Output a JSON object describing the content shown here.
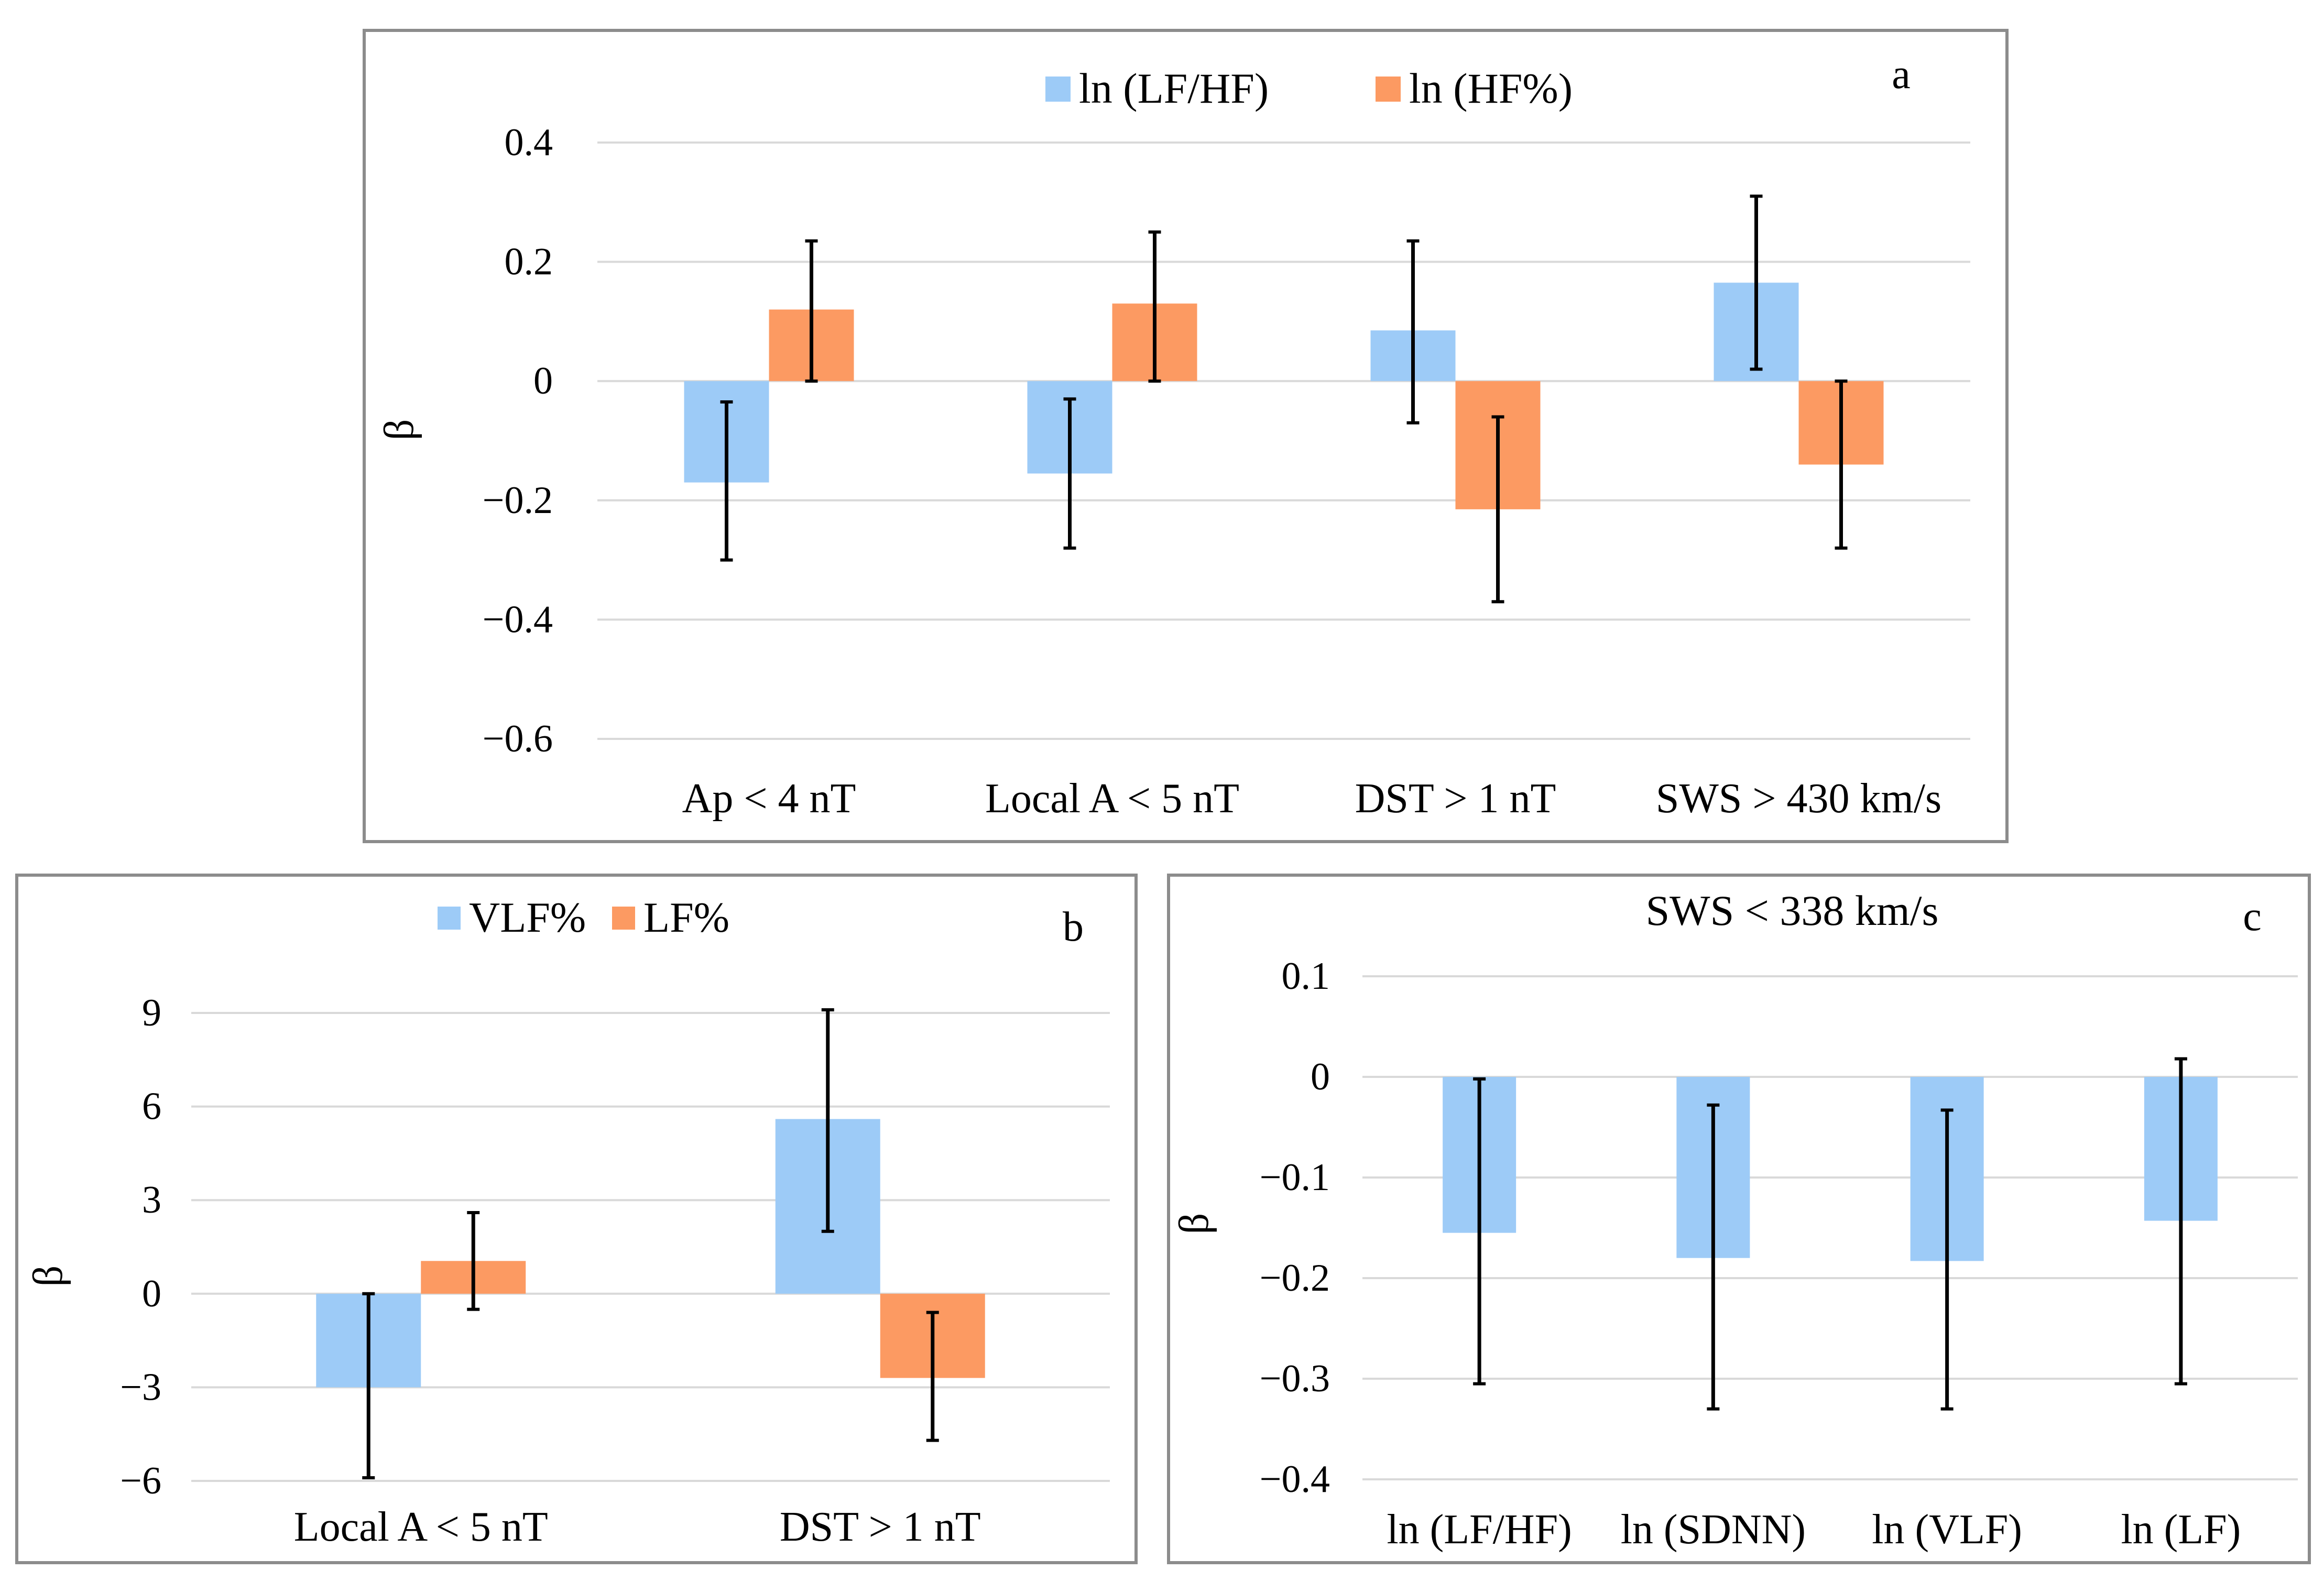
{
  "chart_data": [
    {
      "id": "a",
      "type": "bar",
      "panel_label": "a",
      "title": "",
      "xlabel": "",
      "ylabel": "β",
      "ylim": [
        -0.6,
        0.4
      ],
      "yticks": [
        0.4,
        0.2,
        0,
        -0.2,
        -0.4,
        -0.6
      ],
      "ytick_labels": [
        "0.4",
        "0.2",
        "0",
        "−0.2",
        "−0.4",
        "−0.6"
      ],
      "categories": [
        "Ap < 4 nT",
        "Local A < 5 nT",
        "DST > 1 nT",
        "SWS > 430 km/s"
      ],
      "legend_position": "top-center",
      "grid": true,
      "series": [
        {
          "name": "ln (LF/HF)",
          "color": "#9dcbf7",
          "values": [
            -0.17,
            -0.155,
            0.085,
            0.165
          ],
          "err_low": [
            -0.3,
            -0.28,
            -0.07,
            0.02
          ],
          "err_high": [
            -0.035,
            -0.03,
            0.235,
            0.31
          ]
        },
        {
          "name": "ln (HF%)",
          "color": "#fc9a62",
          "values": [
            0.12,
            0.13,
            -0.215,
            -0.14
          ],
          "err_low": [
            0.0,
            0.0,
            -0.37,
            -0.28
          ],
          "err_high": [
            0.235,
            0.25,
            -0.06,
            0.0
          ]
        }
      ]
    },
    {
      "id": "b",
      "type": "bar",
      "panel_label": "b",
      "title": "",
      "xlabel": "",
      "ylabel": "β",
      "ylim": [
        -6,
        9
      ],
      "yticks": [
        9,
        6,
        3,
        0,
        -3,
        -6
      ],
      "ytick_labels": [
        "9",
        "6",
        "3",
        "0",
        "−3",
        "−6"
      ],
      "categories": [
        "Local A < 5 nT",
        "DST > 1 nT"
      ],
      "legend_position": "top-center",
      "grid": true,
      "series": [
        {
          "name": "VLF%",
          "color": "#9dcbf7",
          "values": [
            -3.0,
            5.6
          ],
          "err_low": [
            -5.9,
            2.0
          ],
          "err_high": [
            0.0,
            9.1
          ]
        },
        {
          "name": "LF%",
          "color": "#fc9a62",
          "values": [
            1.05,
            -2.7
          ],
          "err_low": [
            -0.5,
            -4.7
          ],
          "err_high": [
            2.6,
            -0.6
          ]
        }
      ]
    },
    {
      "id": "c",
      "type": "bar",
      "panel_label": "c",
      "title": "SWS < 338 km/s",
      "xlabel": "",
      "ylabel": "β",
      "ylim": [
        -0.4,
        0.1
      ],
      "yticks": [
        0.1,
        0,
        -0.1,
        -0.2,
        -0.3,
        -0.4
      ],
      "ytick_labels": [
        "0.1",
        "0",
        "−0.1",
        "−0.2",
        "−0.3",
        "−0.4"
      ],
      "categories": [
        "ln (LF/HF)",
        "ln (SDNN)",
        "ln (VLF)",
        "ln (LF)"
      ],
      "legend_position": "none",
      "grid": true,
      "series": [
        {
          "name": "",
          "color": "#9dcbf7",
          "values": [
            -0.155,
            -0.18,
            -0.183,
            -0.143
          ],
          "err_low": [
            -0.305,
            -0.33,
            -0.33,
            -0.305
          ],
          "err_high": [
            -0.002,
            -0.028,
            -0.033,
            0.018
          ]
        }
      ]
    }
  ]
}
